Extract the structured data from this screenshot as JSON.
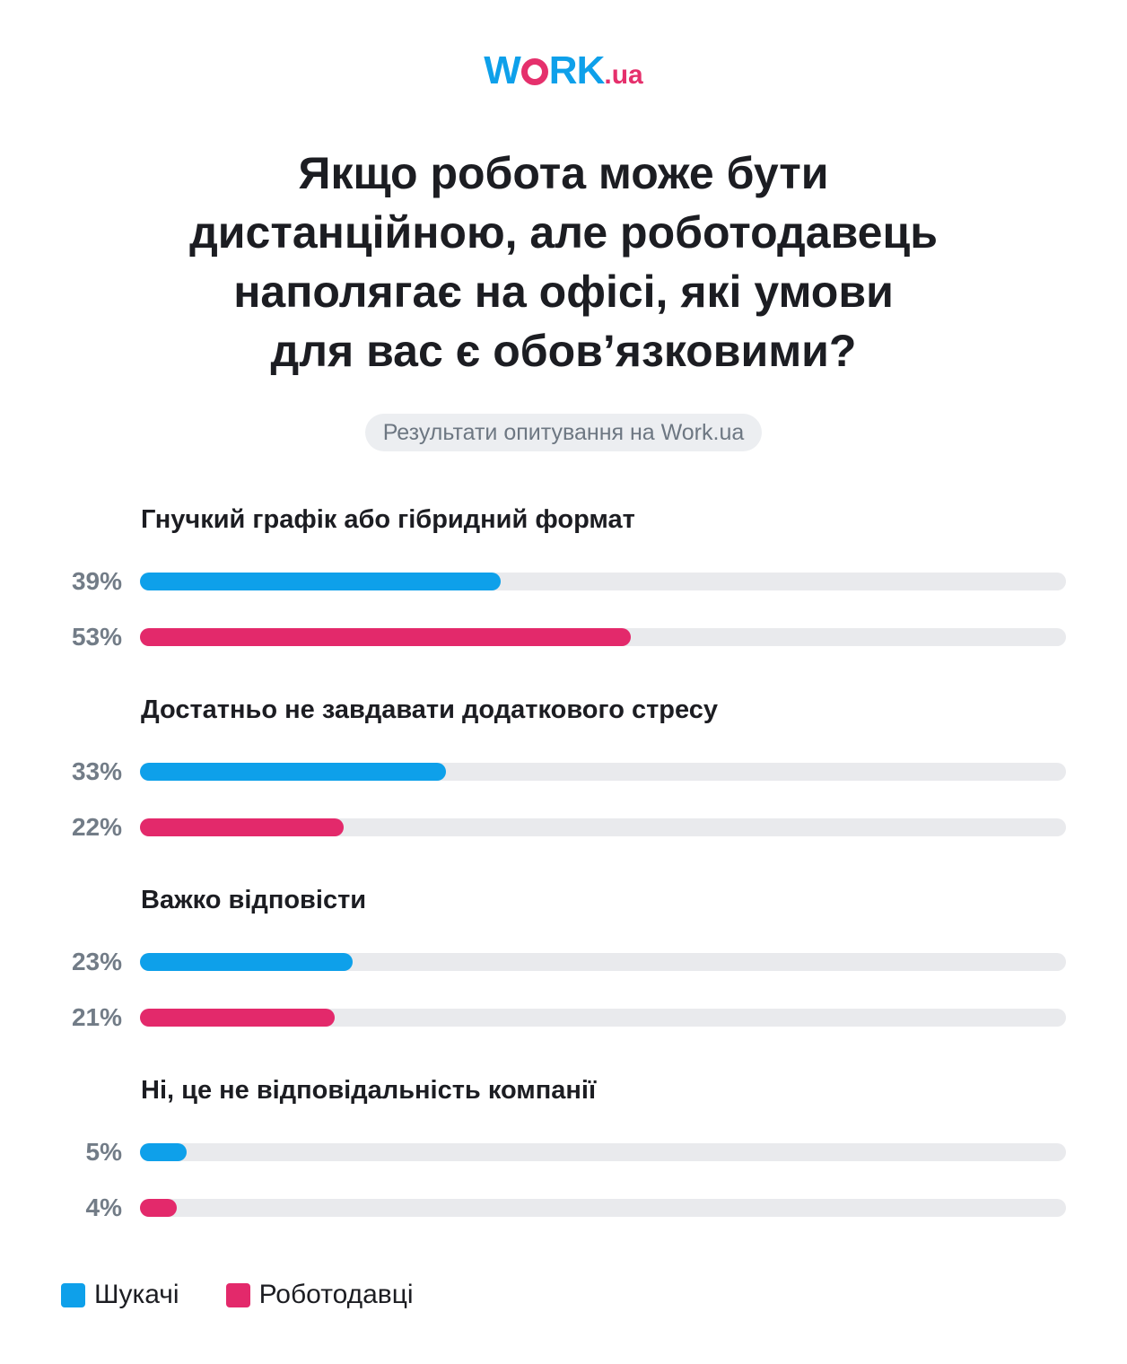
{
  "logo": {
    "before": "W",
    "after": "RK",
    "domain": ".ua"
  },
  "colors": {
    "seekers": "#0ea0ea",
    "employers": "#e3296b",
    "logo_blue": "#0ea0ea",
    "logo_pink": "#e5306c"
  },
  "chart_data": {
    "type": "bar",
    "orientation": "horizontal",
    "title": [
      "Якщо робота може бути",
      "дистанційною, але роботодавець",
      "наполягає на офісі, які умови",
      "для вас є обов’язковими?"
    ],
    "subtitle": "Результати опитування на Work.ua",
    "xlim": [
      0,
      100
    ],
    "categories": [
      "Гнучкий графік або гібридний формат",
      "Достатньо не завдавати додаткового стресу",
      "Важко відповісти",
      "Ні, це не відповідальність компанії"
    ],
    "series": [
      {
        "name": "Шукачі",
        "values": [
          39,
          33,
          23,
          5
        ],
        "labels": [
          "39%",
          "33%",
          "23%",
          "5%"
        ],
        "color": "#0ea0ea"
      },
      {
        "name": "Роботодавці",
        "values": [
          53,
          22,
          21,
          4
        ],
        "labels": [
          "53%",
          "22%",
          "21%",
          "4%"
        ],
        "color": "#e3296b"
      }
    ],
    "legend_position": "bottom-left"
  }
}
